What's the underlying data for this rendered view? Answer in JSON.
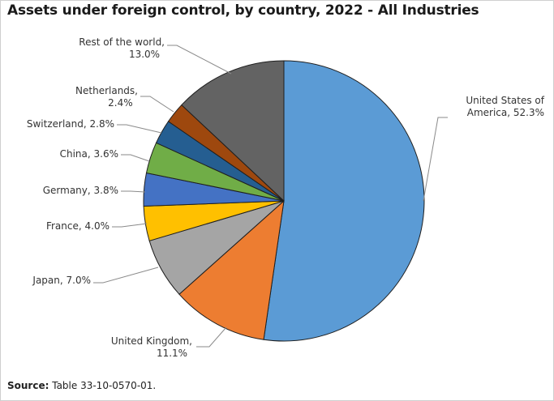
{
  "title": "Assets under foreign control, by country, 2022 - All Industries",
  "source": {
    "label": "Source:",
    "text": "Table 33-10-0570-01."
  },
  "chart_data": {
    "type": "pie",
    "title": "Assets under foreign control, by country, 2022 - All Industries",
    "start_angle_deg": 0,
    "direction": "clockwise",
    "slices": [
      {
        "name": "United States of America",
        "value": 52.3,
        "label_lines": [
          "United States of",
          "America, 52.3%"
        ],
        "color": "#5b9bd5"
      },
      {
        "name": "United Kingdom",
        "value": 11.1,
        "label_lines": [
          "United Kingdom,",
          "11.1%"
        ],
        "color": "#ed7d31"
      },
      {
        "name": "Japan",
        "value": 7.0,
        "label_lines": [
          "Japan, 7.0%"
        ],
        "color": "#a5a5a5"
      },
      {
        "name": "France",
        "value": 4.0,
        "label_lines": [
          "France, 4.0%"
        ],
        "color": "#ffc000"
      },
      {
        "name": "Germany",
        "value": 3.8,
        "label_lines": [
          "Germany, 3.8%"
        ],
        "color": "#4472c4"
      },
      {
        "name": "China",
        "value": 3.6,
        "label_lines": [
          "China, 3.6%"
        ],
        "color": "#70ad47"
      },
      {
        "name": "Switzerland",
        "value": 2.8,
        "label_lines": [
          "Switzerland, 2.8%"
        ],
        "color": "#255e91"
      },
      {
        "name": "Netherlands",
        "value": 2.4,
        "label_lines": [
          "Netherlands,",
          "2.4%"
        ],
        "color": "#9e480e"
      },
      {
        "name": "Rest of the world",
        "value": 13.0,
        "label_lines": [
          "Rest of the world,",
          "13.0%"
        ],
        "color": "#636363"
      }
    ]
  }
}
